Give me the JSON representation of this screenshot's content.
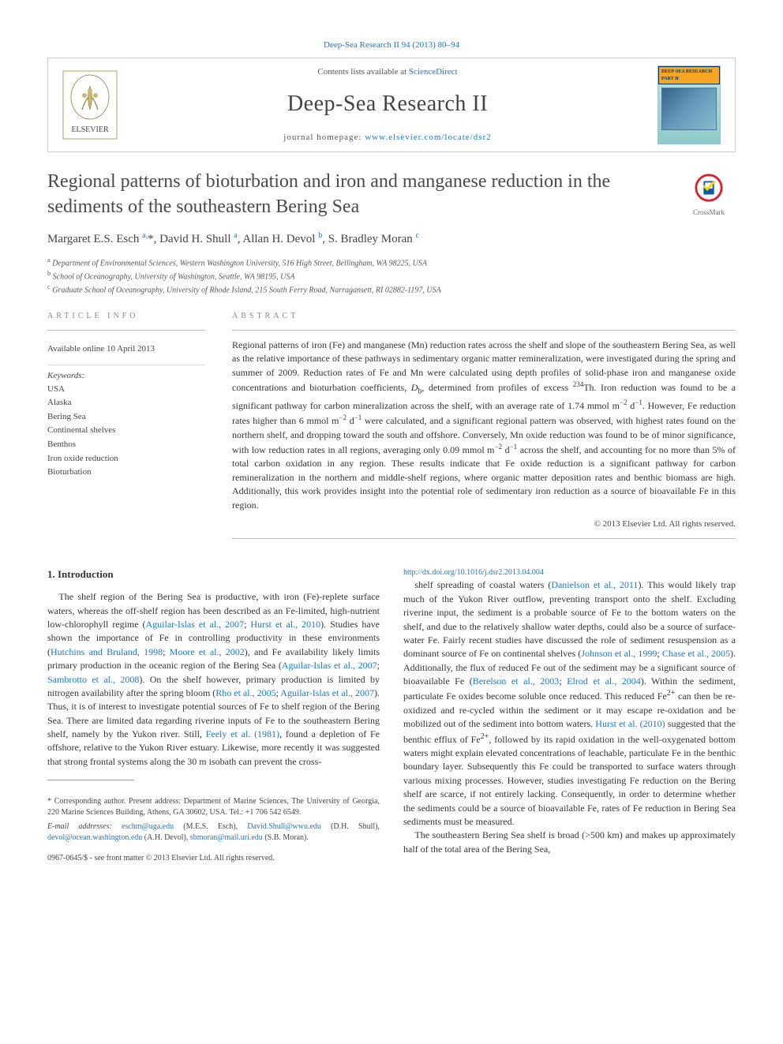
{
  "top_link": {
    "prefix": "",
    "journal": "Deep-Sea Research II 94 (2013) 80–94"
  },
  "header": {
    "contents_prefix": "Contents lists available at ",
    "contents_link": "ScienceDirect",
    "journal_name": "Deep-Sea Research II",
    "homepage_prefix": "journal homepage: ",
    "homepage_url": "www.elsevier.com/locate/dsr2",
    "cover_title": "DEEP-SEA RESEARCH PART II"
  },
  "crossmark_label": "CrossMark",
  "article": {
    "title": "Regional patterns of bioturbation and iron and manganese reduction in the sediments of the southeastern Bering Sea",
    "authors_html": "Margaret E.S. Esch <sup>a,</sup>*, David H. Shull <sup>a</sup>, Allan H. Devol <sup>b</sup>, S. Bradley Moran <sup>c</sup>",
    "affiliations": [
      {
        "sup": "a",
        "text": "Department of Environmental Sciences, Western Washington University, 516 High Street, Bellingham, WA 98225, USA"
      },
      {
        "sup": "b",
        "text": "School of Oceanography, University of Washington, Seattle, WA 98195, USA"
      },
      {
        "sup": "c",
        "text": "Graduate School of Oceanography, University of Rhode Island, 215 South Ferry Road, Narragansett, RI 02882-1197, USA"
      }
    ]
  },
  "info": {
    "label": "ARTICLE INFO",
    "available": "Available online 10 April 2013",
    "keywords_head": "Keywords:",
    "keywords": [
      "USA",
      "Alaska",
      "Bering Sea",
      "Continental shelves",
      "Benthos",
      "Iron oxide reduction",
      "Bioturbation"
    ]
  },
  "abstract": {
    "label": "ABSTRACT",
    "text": "Regional patterns of iron (Fe) and manganese (Mn) reduction rates across the shelf and slope of the southeastern Bering Sea, as well as the relative importance of these pathways in sedimentary organic matter remineralization, were investigated during the spring and summer of 2009. Reduction rates of Fe and Mn were calculated using depth profiles of solid-phase iron and manganese oxide concentrations and bioturbation coefficients, D_b, determined from profiles of excess ^234Th. Iron reduction was found to be a significant pathway for carbon mineralization across the shelf, with an average rate of 1.74 mmol m^−2 d^−1. However, Fe reduction rates higher than 6 mmol m^−2 d^−1 were calculated, and a significant regional pattern was observed, with highest rates found on the northern shelf, and dropping toward the south and offshore. Conversely, Mn oxide reduction was found to be of minor significance, with low reduction rates in all regions, averaging only 0.09 mmol m^−2 d^−1 across the shelf, and accounting for no more than 5% of total carbon oxidation in any region. These results indicate that Fe oxide reduction is a significant pathway for carbon remineralization in the northern and middle-shelf regions, where organic matter deposition rates and benthic biomass are high. Additionally, this work provides insight into the potential role of sedimentary iron reduction as a source of bioavailable Fe in this region.",
    "copyright": "© 2013 Elsevier Ltd. All rights reserved."
  },
  "body": {
    "section_heading": "1.  Introduction",
    "para1_pre": "The shelf region of the Bering Sea is productive, with iron (Fe)-replete surface waters, whereas the off-shelf region has been described as an Fe-limited, high-nutrient low-chlorophyll regime (",
    "cite1": "Aguilar-Islas et al., 2007",
    "sep1": "; ",
    "cite2": "Hurst et al., 2010",
    "para1_mid1": "). Studies have shown the importance of Fe in controlling productivity in these environments (",
    "cite3": "Hutchins and Bruland, 1998",
    "sep2": "; ",
    "cite4": "Moore et al., 2002",
    "para1_mid2": "), and Fe availability likely limits primary production in the oceanic region of the Bering Sea (",
    "cite5": "Aguilar-Islas et al., 2007",
    "sep3": "; ",
    "cite6": "Sambrotto et al., 2008",
    "para1_mid3": "). On the shelf however, primary production is limited by nitrogen availability after the spring bloom (",
    "cite7": "Rho et al., 2005",
    "sep4": "; ",
    "cite8": "Aguilar-Islas et al., 2007",
    "para1_mid4": "). Thus, it is of interest to investigate potential sources of Fe to shelf region of the Bering Sea. There are limited data regarding riverine inputs of Fe to the southeastern Bering shelf, namely by the Yukon river. Still, ",
    "cite9": "Feely et al. (1981)",
    "para1_end": ", found a depletion of Fe offshore, relative to the Yukon River estuary. Likewise, more recently it was suggested that strong frontal systems along the 30 m isobath can prevent the cross-",
    "para2_pre": "shelf spreading of coastal waters (",
    "cite10": "Danielson et al., 2011",
    "para2_mid1": "). This would likely trap much of the Yukon River outflow, preventing transport onto the shelf. Excluding riverine input, the sediment is a probable source of Fe to the bottom waters on the shelf, and due to the relatively shallow water depths, could also be a source of surface-water Fe. Fairly recent studies have discussed the role of sediment resuspension as a dominant source of Fe on continental shelves (",
    "cite11": "Johnson et al., 1999",
    "sep5": "; ",
    "cite12": "Chase et al., 2005",
    "para2_mid2": "). Additionally, the flux of reduced Fe out of the sediment may be a significant source of bioavailable Fe (",
    "cite13": "Berelson et al., 2003",
    "sep6": "; ",
    "cite14": "Elrod et al., 2004",
    "para2_mid3": "). Within the sediment, particulate Fe oxides become soluble once reduced. This reduced Fe^2+ can then be re-oxidized and re-cycled within the sediment or it may escape re-oxidation and be mobilized out of the sediment into bottom waters. ",
    "cite15": "Hurst et al. (2010)",
    "para2_end": " suggested that the benthic efflux of Fe^2+, followed by its rapid oxidation in the well-oxygenated bottom waters might explain elevated concentrations of leachable, particulate Fe in the benthic boundary layer. Subsequently this Fe could be transported to surface waters through various mixing processes. However, studies investigating Fe reduction on the Bering shelf are scarce, if not entirely lacking. Consequently, in order to determine whether the sediments could be a source of bioavailable Fe, rates of Fe reduction in Bering Sea sediments must be measured.",
    "para3": "The southeastern Bering Sea shelf is broad (>500 km) and makes up approximately half of the total area of the Bering Sea,"
  },
  "footnotes": {
    "corr_label": "* Corresponding author. Present address: Department of Marine Sciences, The University of Georgia, 220 Marine Sciences Building, Athens, GA 30602, USA. Tel.: +1 706 542 6549.",
    "email_label": "E-mail addresses: ",
    "emails": [
      {
        "addr": "eschm@uga.edu",
        "who": "(M.E.S. Esch),"
      },
      {
        "addr": "David.Shull@wwu.edu",
        "who": "(D.H. Shull),"
      },
      {
        "addr": "devol@ocean.washington.edu",
        "who": "(A.H. Devol),"
      },
      {
        "addr": "sbmoran@mail.uri.edu",
        "who": "(S.B. Moran)."
      }
    ]
  },
  "imprint": {
    "issn": "0967-0645/$ - see front matter © 2013 Elsevier Ltd. All rights reserved.",
    "doi_label": "http://dx.doi.org/",
    "doi": "10.1016/j.dsr2.2013.04.004"
  },
  "colors": {
    "link": "#1976d2",
    "text": "#333333",
    "rule": "#bbbbbb",
    "header_border": "#cccccc",
    "crossmark_ring": "#d92231",
    "crossmark_check": "#ffd400",
    "crossmark_blue": "#0a5ca8",
    "elsevier_orange": "#f39c12"
  }
}
